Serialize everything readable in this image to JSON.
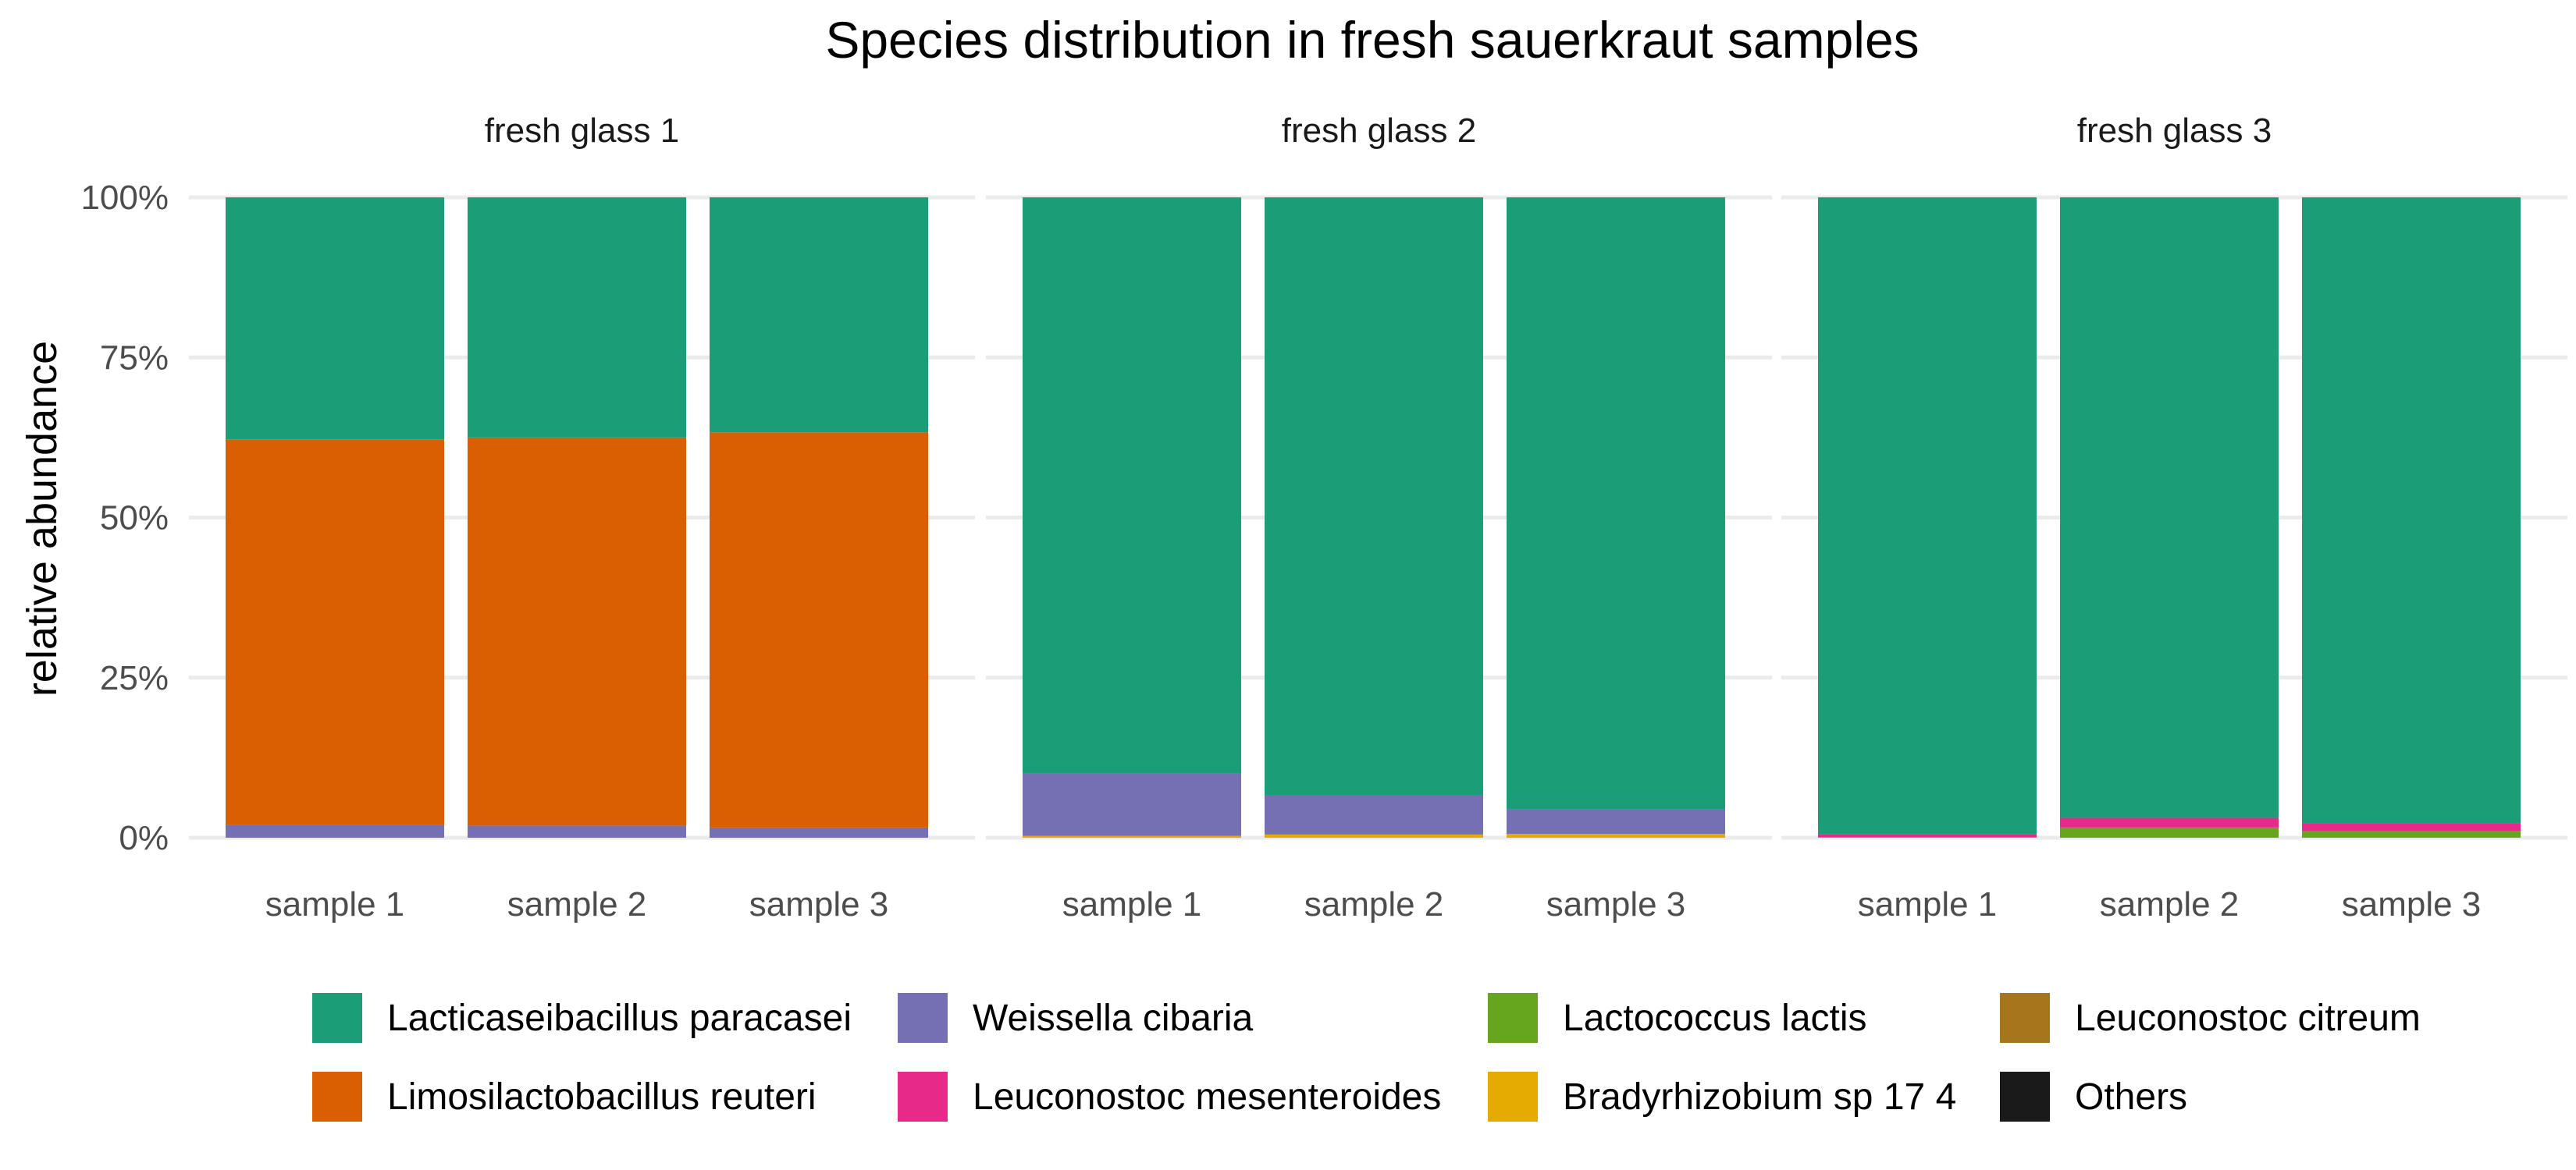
{
  "chart_data": {
    "type": "bar",
    "stacked": true,
    "title": "Species distribution in fresh sauerkraut samples",
    "ylabel": "relative abundance",
    "xlabel": "",
    "ylim": [
      0,
      1
    ],
    "y_ticks": [
      "0%",
      "25%",
      "50%",
      "75%",
      "100%"
    ],
    "y_tick_values": [
      0,
      0.25,
      0.5,
      0.75,
      1.0
    ],
    "grid": true,
    "legend_position": "bottom",
    "categories": [
      "sample 1",
      "sample 2",
      "sample 3"
    ],
    "species": [
      {
        "name": "Lacticaseibacillus paracasei",
        "color": "#1B9E77"
      },
      {
        "name": "Limosilactobacillus reuteri",
        "color": "#D95F02"
      },
      {
        "name": "Weissella cibaria",
        "color": "#7570B3"
      },
      {
        "name": "Leuconostoc mesenteroides",
        "color": "#E7298A"
      },
      {
        "name": "Lactococcus lactis",
        "color": "#66A61E"
      },
      {
        "name": "Bradyrhizobium sp 17 4",
        "color": "#E6AB02"
      },
      {
        "name": "Leuconostoc citreum",
        "color": "#A6761D"
      },
      {
        "name": "Others",
        "color": "#1A1A1A"
      }
    ],
    "stack_order_bottom_to_top": [
      "Others",
      "Leuconostoc citreum",
      "Bradyrhizobium sp 17 4",
      "Lactococcus lactis",
      "Leuconostoc mesenteroides",
      "Weissella cibaria",
      "Limosilactobacillus reuteri",
      "Lacticaseibacillus paracasei"
    ],
    "facets": [
      {
        "label": "fresh glass 1",
        "samples": [
          {
            "name": "sample 1",
            "values": {
              "Lacticaseibacillus paracasei": 0.378,
              "Limosilactobacillus reuteri": 0.602,
              "Weissella cibaria": 0.02
            }
          },
          {
            "name": "sample 2",
            "values": {
              "Lacticaseibacillus paracasei": 0.375,
              "Limosilactobacillus reuteri": 0.606,
              "Weissella cibaria": 0.019
            }
          },
          {
            "name": "sample 3",
            "values": {
              "Lacticaseibacillus paracasei": 0.367,
              "Limosilactobacillus reuteri": 0.617,
              "Weissella cibaria": 0.016
            }
          }
        ]
      },
      {
        "label": "fresh glass 2",
        "samples": [
          {
            "name": "sample 1",
            "values": {
              "Lacticaseibacillus paracasei": 0.9,
              "Weissella cibaria": 0.097,
              "Bradyrhizobium sp 17 4": 0.003
            }
          },
          {
            "name": "sample 2",
            "values": {
              "Lacticaseibacillus paracasei": 0.933,
              "Weissella cibaria": 0.062,
              "Bradyrhizobium sp 17 4": 0.005
            }
          },
          {
            "name": "sample 3",
            "values": {
              "Lacticaseibacillus paracasei": 0.956,
              "Weissella cibaria": 0.038,
              "Bradyrhizobium sp 17 4": 0.006
            }
          }
        ]
      },
      {
        "label": "fresh glass 3",
        "samples": [
          {
            "name": "sample 1",
            "values": {
              "Lacticaseibacillus paracasei": 0.995,
              "Leuconostoc mesenteroides": 0.004,
              "Lactococcus lactis": 0.001
            }
          },
          {
            "name": "sample 2",
            "values": {
              "Lacticaseibacillus paracasei": 0.969,
              "Leuconostoc mesenteroides": 0.015,
              "Lactococcus lactis": 0.016
            }
          },
          {
            "name": "sample 3",
            "values": {
              "Lacticaseibacillus paracasei": 0.978,
              "Leuconostoc mesenteroides": 0.012,
              "Lactococcus lactis": 0.01
            }
          }
        ]
      }
    ],
    "legend_layout": [
      [
        "Lacticaseibacillus paracasei",
        "Weissella cibaria",
        "Lactococcus lactis",
        "Leuconostoc citreum"
      ],
      [
        "Limosilactobacillus reuteri",
        "Leuconostoc mesenteroides",
        "Bradyrhizobium sp 17 4",
        "Others"
      ]
    ]
  }
}
